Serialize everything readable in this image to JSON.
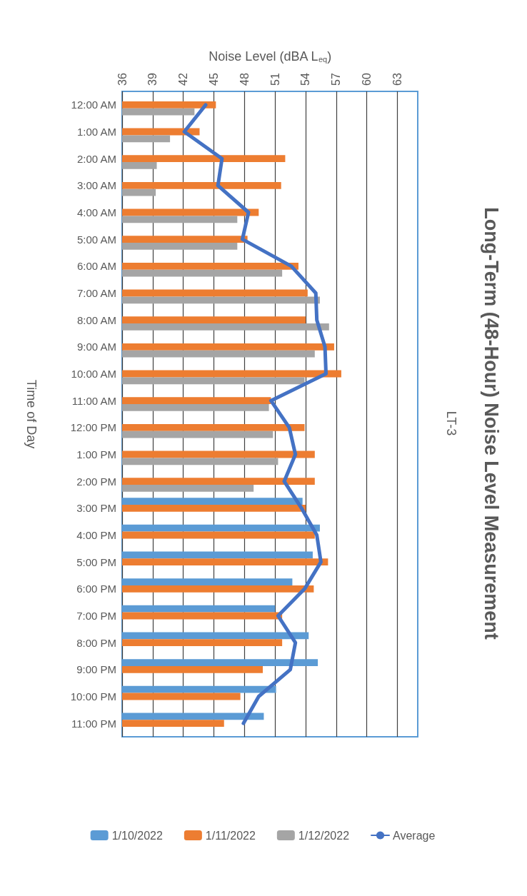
{
  "chart_data": {
    "type": "bar",
    "orientation": "horizontal",
    "title": "Long-Term (48-Hour) Noise Level Measurement",
    "subtitle": "LT-3",
    "xlabel": "Noise Level (dBA L$_{eq}$)",
    "ylabel": "Time of Day",
    "categories": [
      "12:00 AM",
      "1:00 AM",
      "2:00 AM",
      "3:00 AM",
      "4:00 AM",
      "5:00 AM",
      "6:00 AM",
      "7:00 AM",
      "8:00 AM",
      "9:00 AM",
      "10:00 AM",
      "11:00 AM",
      "12:00 PM",
      "1:00 PM",
      "2:00 PM",
      "3:00 PM",
      "4:00 PM",
      "5:00 PM",
      "6:00 PM",
      "7:00 PM",
      "8:00 PM",
      "9:00 PM",
      "10:00 PM",
      "11:00 PM"
    ],
    "series": [
      {
        "name": "1/10/2022",
        "color": "#5b9bd5",
        "values": [
          null,
          null,
          null,
          null,
          null,
          null,
          null,
          null,
          null,
          null,
          null,
          null,
          null,
          null,
          null,
          53.7,
          55.4,
          54.7,
          52.7,
          51.0,
          54.3,
          55.2,
          51.1,
          49.9
        ]
      },
      {
        "name": "1/11/2022",
        "color": "#ed7d31",
        "values": [
          45.2,
          43.6,
          52.0,
          51.6,
          49.4,
          48.3,
          53.3,
          54.2,
          54.0,
          56.8,
          57.5,
          50.6,
          53.9,
          54.9,
          54.9,
          54.0,
          54.9,
          56.2,
          54.8,
          51.7,
          51.7,
          49.8,
          47.6,
          46.0
        ]
      },
      {
        "name": "1/12/2022",
        "color": "#a5a5a5",
        "values": [
          43.1,
          40.7,
          39.4,
          39.3,
          47.3,
          47.3,
          51.7,
          55.4,
          56.3,
          54.9,
          53.9,
          50.4,
          50.8,
          51.3,
          48.9,
          null,
          null,
          null,
          null,
          null,
          null,
          null,
          null,
          null
        ]
      },
      {
        "name": "Average",
        "type": "line",
        "color": "#4472c4",
        "values": [
          44.2,
          42.1,
          45.8,
          45.4,
          48.4,
          47.8,
          52.6,
          55.0,
          55.1,
          55.9,
          56.0,
          50.6,
          52.4,
          53.0,
          51.9,
          53.6,
          55.1,
          55.5,
          53.9,
          51.3,
          53.0,
          52.5,
          49.4,
          47.9
        ]
      }
    ],
    "xlim": [
      36,
      65
    ],
    "xticks": [
      36,
      39,
      42,
      45,
      48,
      51,
      54,
      57,
      60,
      63
    ],
    "grid": "x",
    "legend": "bottom",
    "marker": "none",
    "line_style": "solid"
  }
}
